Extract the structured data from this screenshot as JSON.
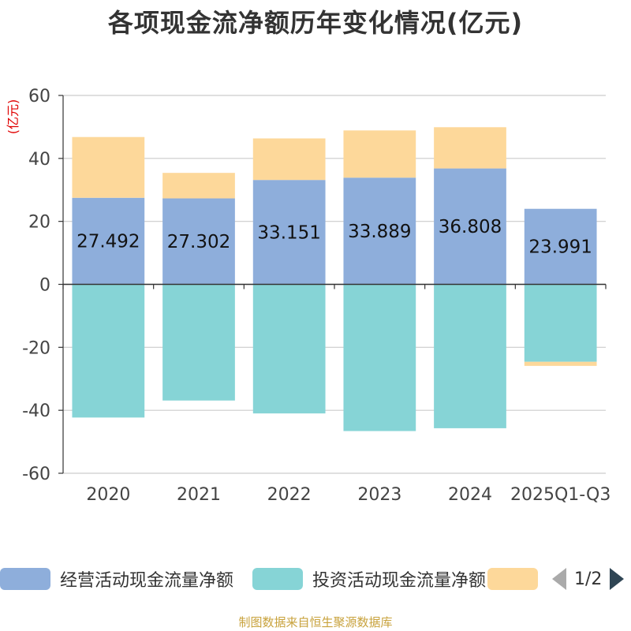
{
  "chart_data": {
    "type": "bar",
    "stacked": true,
    "title": "各项现金流净额历年变化情况(亿元)",
    "ylabel": "(亿元)",
    "xlabel": "",
    "ylim": [
      -60,
      60
    ],
    "yticks": [
      60,
      40,
      20,
      0,
      -20,
      -40,
      -60
    ],
    "categories": [
      "2020",
      "2021",
      "2022",
      "2023",
      "2024",
      "2025Q1-Q3"
    ],
    "series": [
      {
        "name": "经营活动现金流量净额",
        "color": "#8eaedb",
        "values": [
          27.492,
          27.302,
          33.151,
          33.889,
          36.808,
          23.991
        ],
        "labels": [
          "27.492",
          "27.302",
          "33.151",
          "33.889",
          "36.808",
          "23.991"
        ]
      },
      {
        "name": "投资活动现金流量净额",
        "color": "#86d4d6",
        "values": [
          -42.3,
          -36.9,
          -41.0,
          -46.6,
          -45.7,
          -24.6
        ]
      },
      {
        "name": "",
        "color": "#fdd89a",
        "values": [
          19.3,
          8.1,
          13.2,
          15.0,
          13.1,
          -1.3
        ]
      }
    ],
    "legend_position": "bottom"
  },
  "legend": {
    "items": [
      "经营活动现金流量净额",
      "投资活动现金流量净额",
      ""
    ],
    "pager": "1/2"
  },
  "footer": {
    "source": "制图数据来自恒生聚源数据库"
  }
}
